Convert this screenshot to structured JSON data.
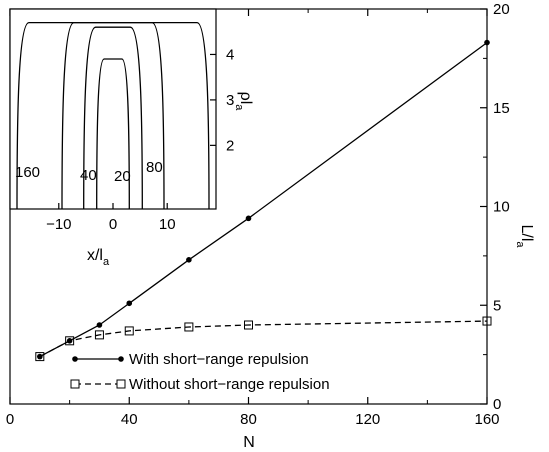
{
  "chart_data": [
    {
      "type": "line",
      "title": "",
      "xlabel": "N",
      "ylabel": "L/l",
      "ylabel_sub": "a",
      "xlim": [
        0,
        160
      ],
      "ylim": [
        0,
        20
      ],
      "x_ticks": [
        "0",
        "40",
        "80",
        "120",
        "160"
      ],
      "y_ticks": [
        "0",
        "5",
        "10",
        "15",
        "20"
      ],
      "y_axis_side": "right",
      "grid": false,
      "legend_position": "bottom-left",
      "series": [
        {
          "name": "With short−range repulsion",
          "marker": "filled-circle",
          "line_style": "solid",
          "color": "#000000",
          "x": [
            10,
            20,
            30,
            40,
            60,
            80,
            160
          ],
          "y": [
            2.4,
            3.2,
            4.0,
            5.1,
            7.3,
            9.4,
            18.3
          ]
        },
        {
          "name": "Without short−range repulsion",
          "marker": "open-square",
          "line_style": "dashed",
          "color": "#000000",
          "x": [
            10,
            20,
            30,
            40,
            60,
            80,
            160
          ],
          "y": [
            2.4,
            3.2,
            3.5,
            3.7,
            3.9,
            4.0,
            4.2
          ]
        }
      ]
    },
    {
      "type": "line",
      "title": "",
      "xlabel": "x/l",
      "xlabel_sub": "a",
      "ylabel": "ρl",
      "ylabel_sub": "a",
      "xlim": [
        -19,
        19
      ],
      "ylim": [
        0.6,
        5.0
      ],
      "x_ticks": [
        "−10",
        "0",
        "10"
      ],
      "y_ticks": [
        "2",
        "3",
        "4"
      ],
      "y_axis_side": "right",
      "grid": false,
      "curve_labels": [
        "160",
        "40",
        "20",
        "80"
      ],
      "series": [
        {
          "label": "20",
          "half_width": 3.0,
          "peak": 3.9
        },
        {
          "label": "40",
          "half_width": 5.4,
          "peak": 4.6
        },
        {
          "label": "80",
          "half_width": 9.4,
          "peak": 4.7
        },
        {
          "label": "160",
          "half_width": 17.7,
          "peak": 4.7
        }
      ]
    }
  ]
}
